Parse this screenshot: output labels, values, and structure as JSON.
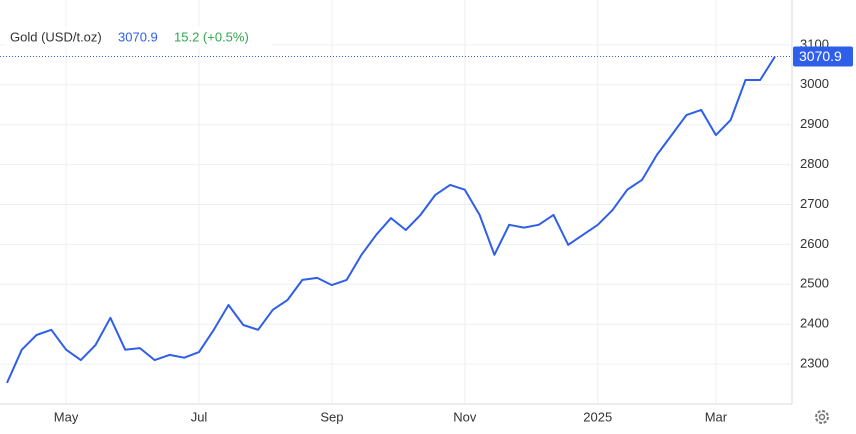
{
  "chart_data": {
    "type": "line",
    "title": "Gold (USD/t.oz)",
    "change": "15.2 (+0.5%)",
    "categories": [
      null,
      null,
      null,
      null,
      "May",
      null,
      null,
      null,
      null,
      null,
      null,
      null,
      null,
      "Jul",
      null,
      null,
      null,
      null,
      null,
      null,
      null,
      null,
      "Sep",
      null,
      null,
      null,
      null,
      null,
      null,
      null,
      null,
      "Nov",
      null,
      null,
      null,
      null,
      null,
      null,
      null,
      null,
      "2025",
      null,
      null,
      null,
      null,
      null,
      null,
      null,
      "Mar",
      null,
      null,
      null,
      null
    ],
    "series": [
      {
        "name": "Gold",
        "color": "#2f5fe8",
        "values": [
          2253,
          2336,
          2373,
          2386,
          2336,
          2310,
          2348,
          2416,
          2336,
          2340,
          2310,
          2323,
          2316,
          2330,
          2386,
          2448,
          2398,
          2386,
          2436,
          2461,
          2511,
          2516,
          2498,
          2511,
          2574,
          2624,
          2666,
          2636,
          2674,
          2724,
          2749,
          2737,
          2674,
          2574,
          2649,
          2642,
          2649,
          2674,
          2599,
          2624,
          2649,
          2686,
          2737,
          2762,
          2824,
          2874,
          2924,
          2937,
          2874,
          2912,
          3012,
          3012,
          3070.9
        ]
      }
    ],
    "ylim": [
      2200,
      3200
    ],
    "yticks": [
      2300,
      2400,
      2500,
      2600,
      2700,
      2800,
      2900,
      3000,
      3100
    ],
    "grid": true
  }
}
